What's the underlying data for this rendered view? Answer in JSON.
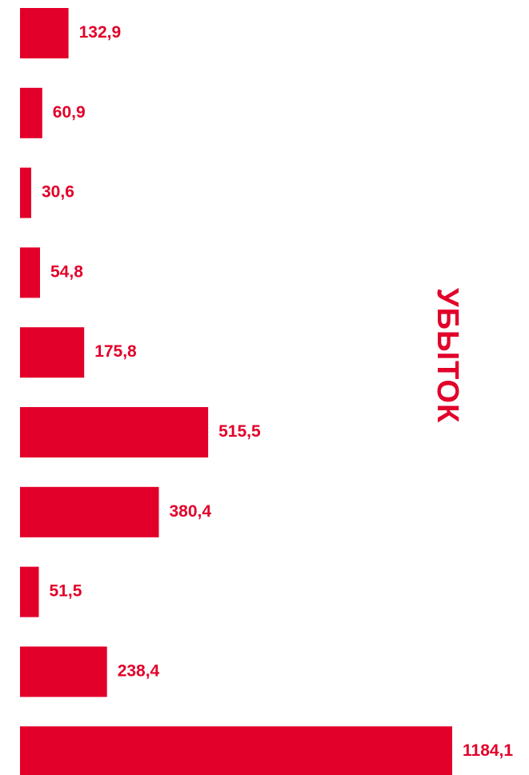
{
  "chart_data": {
    "type": "bar",
    "orientation": "horizontal",
    "title": "УБЫТОК",
    "values": [
      132.9,
      60.9,
      30.6,
      54.8,
      175.8,
      515.5,
      380.4,
      51.5,
      238.4,
      1184.1
    ],
    "value_labels": [
      "132,9",
      "60,9",
      "30,6",
      "54,8",
      "175,8",
      "515,5",
      "380,4",
      "51,5",
      "238,4",
      "1184,1"
    ],
    "xlabel": "",
    "ylabel": "",
    "xlim": [
      0,
      1184.1
    ],
    "grid": false,
    "legend": "none"
  },
  "colors": {
    "bar": "#E2002A",
    "label": "#E2002A",
    "background": "#FFFFFF"
  }
}
